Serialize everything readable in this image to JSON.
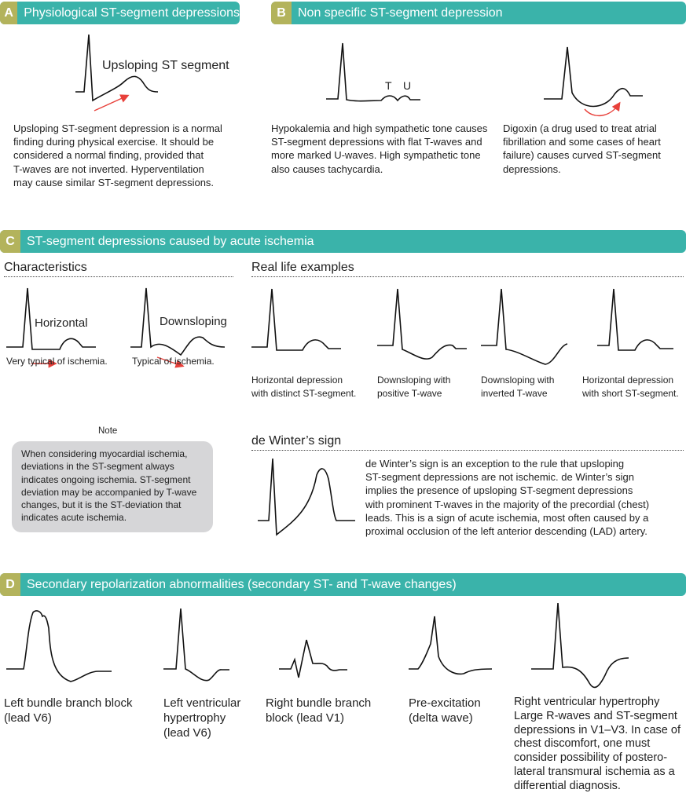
{
  "colors": {
    "header": "#3ab3aa",
    "letter": "#b3b35c",
    "trace": "#111111",
    "arrow": "#e8403a",
    "note_bg": "#d6d6d8"
  },
  "sectionA": {
    "letter": "A",
    "title": "Physiological ST-segment depressions",
    "label": "Upsloping ST segment",
    "text": "Upsloping ST-segment depression is a normal\nfinding during physical exercise. It should be\nconsidered a normal finding, provided that\nT-waves are not inverted. Hyperventilation\nmay cause similar ST-segment depressions."
  },
  "sectionB": {
    "letter": "B",
    "title": "Non specific ST-segment depression",
    "t_label": "T",
    "u_label": "U",
    "text1": "Hypokalemia and high sympathetic tone causes\nST-segment depressions with flat T-waves and\nmore marked U-waves. High sympathetic tone\nalso causes tachycardia.",
    "text2": "Digoxin (a drug used to treat atrial\nfibrillation and some cases of heart\nfailure) causes curved ST-segment\ndepressions."
  },
  "sectionC": {
    "letter": "C",
    "title": "ST-segment depressions caused by acute ischemia",
    "characteristics": "Characteristics",
    "real_life": "Real life examples",
    "horizontal": "Horizontal",
    "downsloping": "Downsloping",
    "cap_h": "Very typical of ischemia.",
    "cap_d": "Typical of ischemia.",
    "examples": [
      "Horizontal depression\nwith distinct ST-segment.",
      "Downsloping with\npositive T-wave",
      "Downsloping with\ninverted T-wave",
      "Horizontal depression\nwith short ST-segment."
    ],
    "note_title": "Note",
    "note": "When considering myocardial ischemia, deviations in the ST-segment always indicates ongoing ischemia. ST-segment deviation may be accompanied by T-wave changes, but it is the ST-deviation that indicates acute ischemia.",
    "dewinter_title": "de Winter’s sign",
    "dewinter_text": "de Winter’s sign is an exception to the rule that upsloping\nST-segment depressions are not ischemic. de Winter’s sign\nimplies the presence of upsloping ST-segment depressions\nwith prominent T-waves in the majority of the precordial (chest)\nleads. This is a sign of acute ischemia, most often caused by a\nproximal occlusion of the left anterior descending (LAD) artery."
  },
  "sectionD": {
    "letter": "D",
    "title": "Secondary repolarization abnormalities (secondary ST- and T-wave changes)",
    "captions": [
      "Left bundle branch block\n(lead V6)",
      "Left ventricular\nhypertrophy\n(lead V6)",
      "Right bundle branch\nblock (lead V1)",
      "Pre-excitation\n(delta wave)",
      "Right ventricular hypertrophy\nLarge R-waves and ST-segment\ndepressions in V1–V3. In case of\nchest discomfort, one must\nconsider possibility of postero-\nlateral transmural ischemia as a\ndifferential diagnosis."
    ]
  }
}
